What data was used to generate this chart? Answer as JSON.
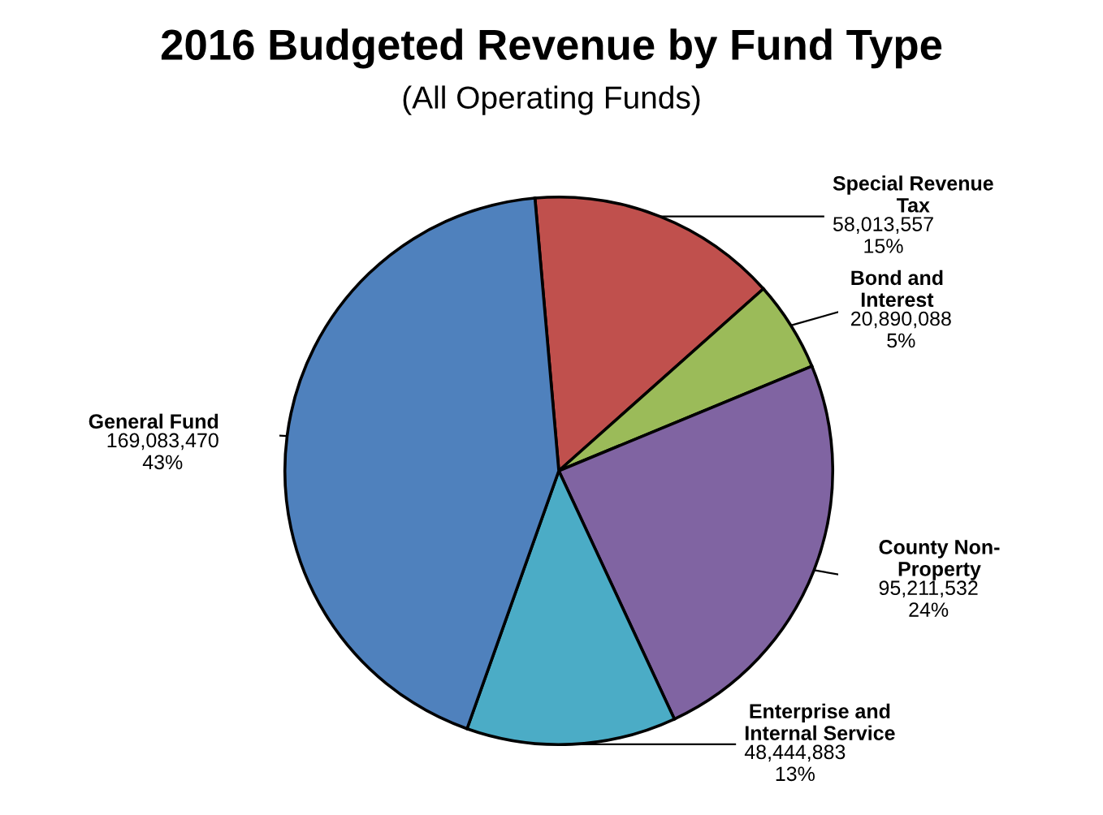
{
  "chart_data": {
    "type": "pie",
    "title": "2016 Budgeted Revenue by Fund Type",
    "subtitle": "(All Operating Funds)",
    "categories": [
      "Special Revenue\nTax",
      "Bond and\nInterest",
      "County Non-\nProperty",
      "Enterprise and\nInternal Service",
      "General Fund"
    ],
    "values": [
      58013557,
      20890088,
      95211532,
      48444883,
      169083470
    ],
    "value_labels": [
      "58,013,557\n15%",
      "20,890,088\n5%",
      "95,211,532\n24%",
      "48,444,883\n13%",
      "169,083,470\n43%"
    ],
    "colors": [
      "#c0504d",
      "#9bbb59",
      "#8064a2",
      "#4bacc6",
      "#4f81bd"
    ]
  }
}
